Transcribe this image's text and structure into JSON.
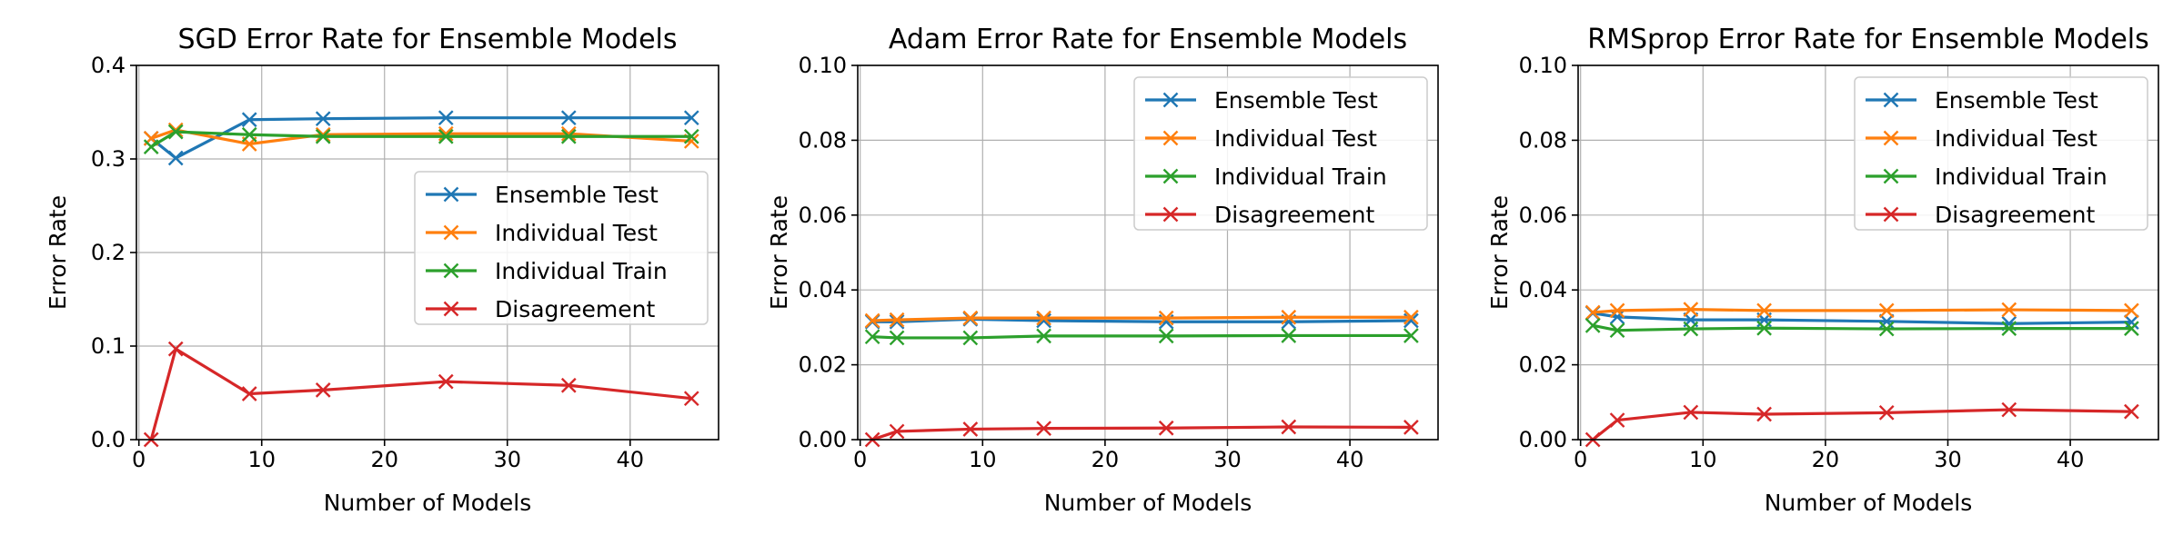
{
  "chart_data": [
    {
      "type": "line",
      "title": "SGD Error Rate for Ensemble Models",
      "xlabel": "Number of Models",
      "ylabel": "Error Rate",
      "xlim": [
        -0.2,
        47.2
      ],
      "ylim": [
        0,
        0.4
      ],
      "xticks": [
        0,
        10,
        20,
        30,
        40
      ],
      "yticks": [
        0.0,
        0.1,
        0.2,
        0.3,
        0.4
      ],
      "ytick_labels": [
        "0.0",
        "0.1",
        "0.2",
        "0.3",
        "0.4"
      ],
      "grid": true,
      "legend_position": "center-right",
      "marker": "x",
      "x": [
        1,
        3,
        9,
        15,
        25,
        35,
        45
      ],
      "series": [
        {
          "name": "Ensemble Test",
          "color": "#1f77b4",
          "values": [
            0.322,
            0.301,
            0.342,
            0.343,
            0.344,
            0.344,
            0.344
          ]
        },
        {
          "name": "Individual Test",
          "color": "#ff7f0e",
          "values": [
            0.322,
            0.331,
            0.316,
            0.326,
            0.327,
            0.327,
            0.319
          ]
        },
        {
          "name": "Individual Train",
          "color": "#2ca02c",
          "values": [
            0.313,
            0.329,
            0.326,
            0.324,
            0.324,
            0.324,
            0.324
          ]
        },
        {
          "name": "Disagreement",
          "color": "#d62728",
          "values": [
            0.0,
            0.097,
            0.049,
            0.053,
            0.062,
            0.058,
            0.044
          ]
        }
      ]
    },
    {
      "type": "line",
      "title": "Adam Error Rate for Ensemble Models",
      "xlabel": "Number of Models",
      "ylabel": "Error Rate",
      "xlim": [
        -0.2,
        47.2
      ],
      "ylim": [
        0,
        0.1
      ],
      "xticks": [
        0,
        10,
        20,
        30,
        40
      ],
      "yticks": [
        0.0,
        0.02,
        0.04,
        0.06,
        0.08,
        0.1
      ],
      "ytick_labels": [
        "0.00",
        "0.02",
        "0.04",
        "0.06",
        "0.08",
        "0.10"
      ],
      "grid": true,
      "legend_position": "upper-right",
      "marker": "x",
      "x": [
        1,
        3,
        9,
        15,
        25,
        35,
        45
      ],
      "series": [
        {
          "name": "Ensemble Test",
          "color": "#1f77b4",
          "values": [
            0.0315,
            0.0315,
            0.0322,
            0.0318,
            0.0315,
            0.0315,
            0.0318
          ]
        },
        {
          "name": "Individual Test",
          "color": "#ff7f0e",
          "values": [
            0.0318,
            0.032,
            0.0325,
            0.0325,
            0.0325,
            0.0327,
            0.0327
          ]
        },
        {
          "name": "Individual Train",
          "color": "#2ca02c",
          "values": [
            0.0275,
            0.0272,
            0.0272,
            0.0277,
            0.0277,
            0.0278,
            0.0278
          ]
        },
        {
          "name": "Disagreement",
          "color": "#d62728",
          "values": [
            0.0,
            0.0022,
            0.0028,
            0.003,
            0.0031,
            0.0034,
            0.0033
          ]
        }
      ]
    },
    {
      "type": "line",
      "title": "RMSprop Error Rate for Ensemble Models",
      "xlabel": "Number of Models",
      "ylabel": "Error Rate",
      "xlim": [
        -0.2,
        47.2
      ],
      "ylim": [
        0,
        0.1
      ],
      "xticks": [
        0,
        10,
        20,
        30,
        40
      ],
      "yticks": [
        0.0,
        0.02,
        0.04,
        0.06,
        0.08,
        0.1
      ],
      "ytick_labels": [
        "0.00",
        "0.02",
        "0.04",
        "0.06",
        "0.08",
        "0.10"
      ],
      "grid": true,
      "legend_position": "upper-right",
      "marker": "x",
      "x": [
        1,
        3,
        9,
        15,
        25,
        35,
        45
      ],
      "series": [
        {
          "name": "Ensemble Test",
          "color": "#1f77b4",
          "values": [
            0.0338,
            0.0328,
            0.032,
            0.032,
            0.0316,
            0.031,
            0.0314
          ]
        },
        {
          "name": "Individual Test",
          "color": "#ff7f0e",
          "values": [
            0.034,
            0.0345,
            0.0348,
            0.0345,
            0.0345,
            0.0347,
            0.0345
          ]
        },
        {
          "name": "Individual Train",
          "color": "#2ca02c",
          "values": [
            0.0305,
            0.0292,
            0.0296,
            0.0298,
            0.0296,
            0.0297,
            0.0297
          ]
        },
        {
          "name": "Disagreement",
          "color": "#d62728",
          "values": [
            0.0,
            0.0052,
            0.0073,
            0.0068,
            0.0072,
            0.008,
            0.0075
          ]
        }
      ]
    }
  ]
}
